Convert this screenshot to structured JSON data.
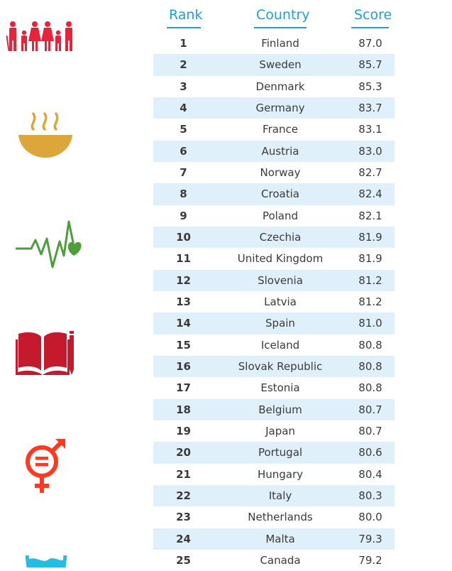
{
  "headers": {
    "rank": "Rank",
    "country": "Country",
    "score": "Score"
  },
  "colors": {
    "header": "#1f9fd6",
    "row_alt": "#dff0fb",
    "poverty": "#e5243b",
    "hunger": "#dda63a",
    "health": "#4c9f38",
    "education": "#c5192d",
    "gender": "#ff3a21",
    "water": "#26bde2"
  },
  "icons": [
    "family-icon",
    "food-bowl-icon",
    "heartbeat-icon",
    "book-pencil-icon",
    "gender-equality-icon",
    "water-glass-icon"
  ],
  "rows": [
    {
      "rank": "1",
      "country": "Finland",
      "score": "87.0"
    },
    {
      "rank": "2",
      "country": "Sweden",
      "score": "85.7"
    },
    {
      "rank": "3",
      "country": "Denmark",
      "score": "85.3"
    },
    {
      "rank": "4",
      "country": "Germany",
      "score": "83.7"
    },
    {
      "rank": "5",
      "country": "France",
      "score": "83.1"
    },
    {
      "rank": "6",
      "country": "Austria",
      "score": "83.0"
    },
    {
      "rank": "7",
      "country": "Norway",
      "score": "82.7"
    },
    {
      "rank": "8",
      "country": "Croatia",
      "score": "82.4"
    },
    {
      "rank": "9",
      "country": "Poland",
      "score": "82.1"
    },
    {
      "rank": "10",
      "country": "Czechia",
      "score": "81.9"
    },
    {
      "rank": "11",
      "country": "United Kingdom",
      "score": "81.9"
    },
    {
      "rank": "12",
      "country": "Slovenia",
      "score": "81.2"
    },
    {
      "rank": "13",
      "country": "Latvia",
      "score": "81.2"
    },
    {
      "rank": "14",
      "country": "Spain",
      "score": "81.0"
    },
    {
      "rank": "15",
      "country": "Iceland",
      "score": "80.8"
    },
    {
      "rank": "16",
      "country": "Slovak Republic",
      "score": "80.8"
    },
    {
      "rank": "17",
      "country": "Estonia",
      "score": "80.8"
    },
    {
      "rank": "18",
      "country": "Belgium",
      "score": "80.7"
    },
    {
      "rank": "19",
      "country": "Japan",
      "score": "80.7"
    },
    {
      "rank": "20",
      "country": "Portugal",
      "score": "80.6"
    },
    {
      "rank": "21",
      "country": "Hungary",
      "score": "80.4"
    },
    {
      "rank": "22",
      "country": "Italy",
      "score": "80.3"
    },
    {
      "rank": "23",
      "country": "Netherlands",
      "score": "80.0"
    },
    {
      "rank": "24",
      "country": "Malta",
      "score": "79.3"
    },
    {
      "rank": "25",
      "country": "Canada",
      "score": "79.2"
    }
  ]
}
